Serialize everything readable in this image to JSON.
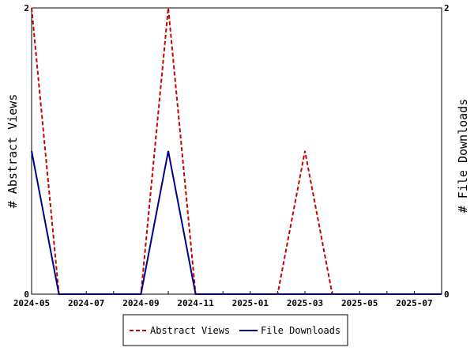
{
  "chart_data": {
    "type": "line",
    "title": "",
    "xlabel": "",
    "ylabel_left": "# Abstract Views",
    "ylabel_right": "# File Downloads",
    "x": [
      "2024-05",
      "2024-06",
      "2024-07",
      "2024-08",
      "2024-09",
      "2024-10",
      "2024-11",
      "2024-12",
      "2025-01",
      "2025-02",
      "2025-03",
      "2025-04",
      "2025-05",
      "2025-06",
      "2025-07",
      "2025-08"
    ],
    "x_tick_labels": [
      "2024-05",
      "2024-07",
      "2024-09",
      "2024-11",
      "2025-01",
      "2025-03",
      "2025-05",
      "2025-07"
    ],
    "y_left_range": [
      0,
      2
    ],
    "y_right_range": [
      0,
      2
    ],
    "y_left_tick_labels": [
      "0",
      "2"
    ],
    "y_right_tick_labels": [
      "0",
      "2"
    ],
    "grid": false,
    "legend_position": "bottom",
    "series": [
      {
        "name": "Abstract Views",
        "axis": "left",
        "color": "#cc0000",
        "style": "dashed",
        "values": [
          2,
          0,
          0,
          0,
          0,
          2,
          0,
          0,
          0,
          0,
          1,
          0,
          0,
          0,
          0,
          0
        ]
      },
      {
        "name": "File Downloads",
        "axis": "right",
        "color": "#00008b",
        "style": "solid",
        "values": [
          1,
          0,
          0,
          0,
          0,
          1,
          0,
          0,
          0,
          0,
          0,
          0,
          0,
          0,
          0,
          0
        ]
      }
    ]
  }
}
